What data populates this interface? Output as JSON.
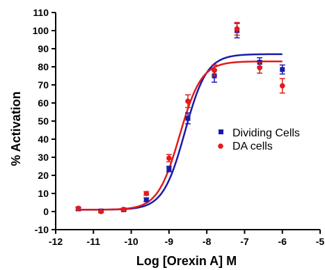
{
  "chart_data": {
    "type": "scatter",
    "title": "",
    "xlabel": "Log [Orexin A] M",
    "ylabel": "% Activation",
    "xlim": [
      -12,
      -5
    ],
    "ylim": [
      -10,
      110
    ],
    "xticks": [
      -12,
      -11,
      -10,
      -9,
      -8,
      -7,
      -6,
      -5
    ],
    "yticks": [
      -10,
      0,
      10,
      20,
      30,
      40,
      50,
      60,
      70,
      80,
      90,
      100,
      110
    ],
    "xtick_labels": [
      "-12",
      "-11",
      "-10",
      "-9",
      "-8",
      "-7",
      "-6",
      "-5"
    ],
    "ytick_labels": [
      "-10",
      "0",
      "10",
      "20",
      "30",
      "40",
      "50",
      "60",
      "70",
      "80",
      "90",
      "100",
      "110"
    ],
    "grid": false,
    "legend_position": "right",
    "series": [
      {
        "name": "Dividing Cells",
        "color": "#1a1aa8",
        "marker": "square",
        "points": [
          {
            "x": -11.4,
            "y": 1.5,
            "err": 0.8
          },
          {
            "x": -10.8,
            "y": 0.3,
            "err": 0.5
          },
          {
            "x": -10.2,
            "y": 1.0,
            "err": 0.6
          },
          {
            "x": -9.6,
            "y": 6.5,
            "err": 1.0
          },
          {
            "x": -9.0,
            "y": 23.5,
            "err": 1.5
          },
          {
            "x": -8.5,
            "y": 51.5,
            "err": 3.0
          },
          {
            "x": -7.8,
            "y": 75.0,
            "err": 3.5
          },
          {
            "x": -7.2,
            "y": 100.0,
            "err": 4.0
          },
          {
            "x": -6.6,
            "y": 82.5,
            "err": 2.5
          },
          {
            "x": -6.0,
            "y": 78.5,
            "err": 2.5
          }
        ],
        "fit": {
          "bottom": 1.0,
          "top": 87.0,
          "logEC50": -8.58,
          "hill": 1.5
        }
      },
      {
        "name": "DA cells",
        "color": "#e01b1b",
        "marker": "circle",
        "points": [
          {
            "x": -11.4,
            "y": 1.8,
            "err": 0.8
          },
          {
            "x": -10.8,
            "y": 0.0,
            "err": 0.5
          },
          {
            "x": -10.2,
            "y": 1.2,
            "err": 0.6
          },
          {
            "x": -9.6,
            "y": 10.0,
            "err": 1.0
          },
          {
            "x": -9.0,
            "y": 29.5,
            "err": 2.0
          },
          {
            "x": -8.5,
            "y": 61.0,
            "err": 3.5
          },
          {
            "x": -7.8,
            "y": 78.0,
            "err": 3.0
          },
          {
            "x": -7.2,
            "y": 101.0,
            "err": 3.5
          },
          {
            "x": -6.6,
            "y": 79.5,
            "err": 3.0
          },
          {
            "x": -6.0,
            "y": 69.5,
            "err": 4.0
          }
        ],
        "fit": {
          "bottom": 1.0,
          "top": 83.0,
          "logEC50": -8.72,
          "hill": 1.5
        }
      }
    ]
  }
}
